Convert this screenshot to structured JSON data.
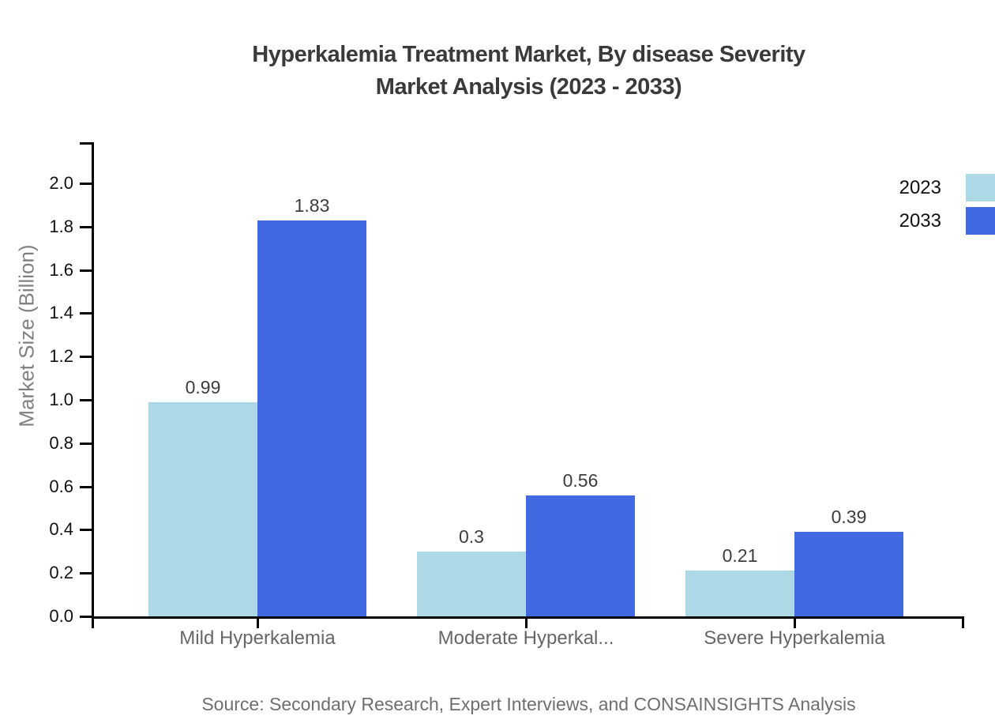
{
  "chart": {
    "title_line1": "Hyperkalemia Treatment Market, By disease Severity",
    "title_line2": "Market Analysis (2023 - 2033)",
    "source": "Source: Secondary Research, Expert Interviews, and CONSAINSIGHTS Analysis"
  },
  "chart_data": {
    "type": "bar",
    "title": "Hyperkalemia Treatment Market, By disease Severity Market Analysis (2023 - 2033)",
    "categories": [
      "Mild Hyperkalemia",
      "Moderate Hyperkal...",
      "Severe Hyperkalemia"
    ],
    "series": [
      {
        "name": "2023",
        "color": "#ADD8E6",
        "values": [
          0.99,
          0.3,
          0.21
        ]
      },
      {
        "name": "2033",
        "color": "#4169E1",
        "values": [
          1.83,
          0.56,
          0.39
        ]
      }
    ],
    "xlabel": "",
    "ylabel": "Market Size (Billion)",
    "ylim": [
      0,
      2.0
    ],
    "ytick_step": 0.2,
    "ytick_format_decimals": 1,
    "grid": false,
    "legend_position": "top-right",
    "data_labels": true,
    "colors": {
      "axis": "#000000",
      "tick_label": "#111111",
      "category_label": "#666666",
      "data_label": "#3d3d3d",
      "title": "#3a3a3a",
      "y_axis_title": "#808080",
      "source": "#6e6e6e",
      "background": "#ffffff"
    }
  }
}
